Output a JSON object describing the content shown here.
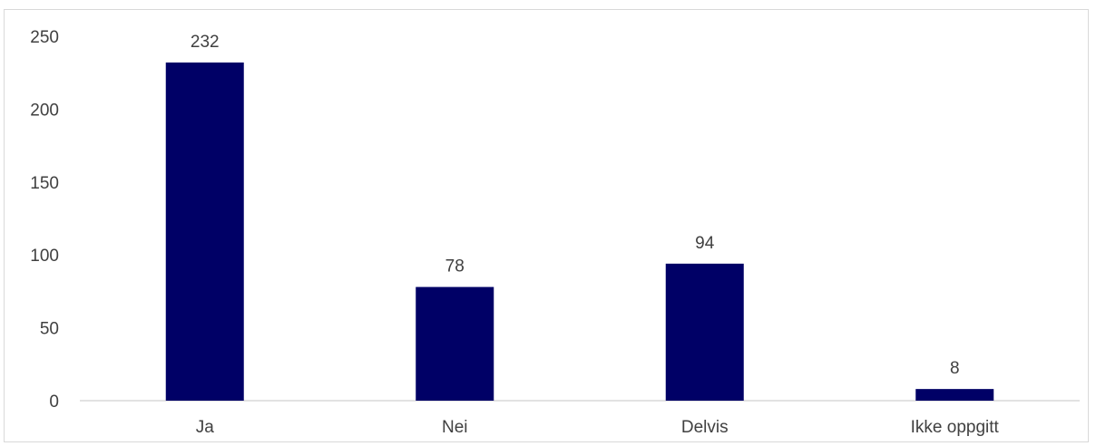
{
  "chart_data": {
    "type": "bar",
    "categories": [
      "Ja",
      "Nei",
      "Delvis",
      "Ikke oppgitt"
    ],
    "values": [
      232,
      78,
      94,
      8
    ],
    "title": "",
    "xlabel": "",
    "ylabel": "",
    "ylim": [
      0,
      250
    ],
    "yticks": [
      0,
      50,
      100,
      150,
      200,
      250
    ],
    "data_labels": true,
    "grid": false,
    "legend": "none",
    "colors": {
      "bar": "#000066",
      "axis": "#d9d9d9",
      "text": "#404040"
    }
  }
}
